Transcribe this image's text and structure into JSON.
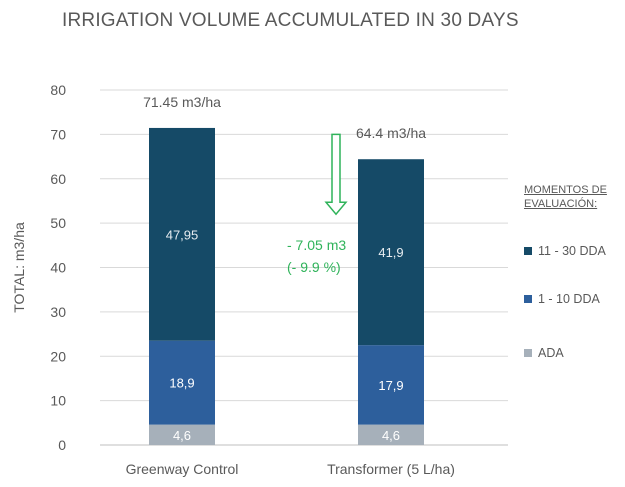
{
  "chart_data": {
    "type": "bar",
    "stacked": true,
    "title": "IRRIGATION VOLUME ACCUMULATED  IN 30 DAYS",
    "ylabel": "TOTAL: m3/ha",
    "xlabel": "",
    "ylim": [
      0,
      80
    ],
    "yticks": [
      0,
      10,
      20,
      30,
      40,
      50,
      60,
      70,
      80
    ],
    "categories": [
      "Greenway Control",
      "Transformer (5 L/ha)"
    ],
    "series": [
      {
        "name": "ADA",
        "values": [
          4.6,
          4.6
        ],
        "labels": [
          "4,6",
          "4,6"
        ],
        "color": "#a6b0ba",
        "label_color": "#ffffff"
      },
      {
        "name": "1 - 10 DDA",
        "values": [
          18.9,
          17.9
        ],
        "labels": [
          "18,9",
          "17,9"
        ],
        "color": "#2d5f9c",
        "label_color": "#ffffff"
      },
      {
        "name": "11 - 30 DDA",
        "values": [
          47.95,
          41.9
        ],
        "labels": [
          "47,95",
          "41,9"
        ],
        "color": "#154a67",
        "label_color": "#e6ecf0"
      }
    ],
    "totals": [
      71.45,
      64.4
    ],
    "total_labels": [
      "71.45 m3/ha",
      "64.4 m3/ha"
    ],
    "legend_title": "MOMENTOS DE EVALUACIÓN:",
    "legend_order": [
      "11 - 30 DDA",
      "1 - 10 DDA",
      "ADA"
    ],
    "annotation": {
      "line1": "- 7.05 m3",
      "line2": "(- 9.9 %)",
      "color": "#2fb35a",
      "arrow_from": 70,
      "arrow_to": 52
    }
  }
}
